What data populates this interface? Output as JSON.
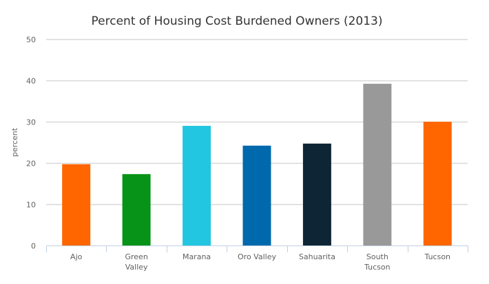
{
  "chart_data": {
    "type": "bar",
    "title": "Percent of Housing Cost Burdened Owners (2013)",
    "xlabel": "",
    "ylabel": "percent",
    "ylim": [
      0,
      50
    ],
    "yticks": [
      0,
      10,
      20,
      30,
      40,
      50
    ],
    "ytick_labels": [
      "0",
      "10",
      "20",
      "30",
      "40",
      "50"
    ],
    "grid": true,
    "legend": "none",
    "categories": [
      "Ajo",
      "Green Valley",
      "Marana",
      "Oro Valley",
      "Sahuarita",
      "South Tucson",
      "Tucson"
    ],
    "category_lines": [
      [
        "Ajo"
      ],
      [
        "Green",
        "Valley"
      ],
      [
        "Marana"
      ],
      [
        "Oro Valley"
      ],
      [
        "Sahuarita"
      ],
      [
        "South",
        "Tucson"
      ],
      [
        "Tucson"
      ]
    ],
    "values": [
      19.7,
      17.3,
      29.0,
      24.2,
      24.7,
      39.2,
      30.0
    ],
    "colors": [
      "#ff6600",
      "#079317",
      "#22c6e0",
      "#0069ad",
      "#0e2536",
      "#999999",
      "#ff6600"
    ]
  }
}
